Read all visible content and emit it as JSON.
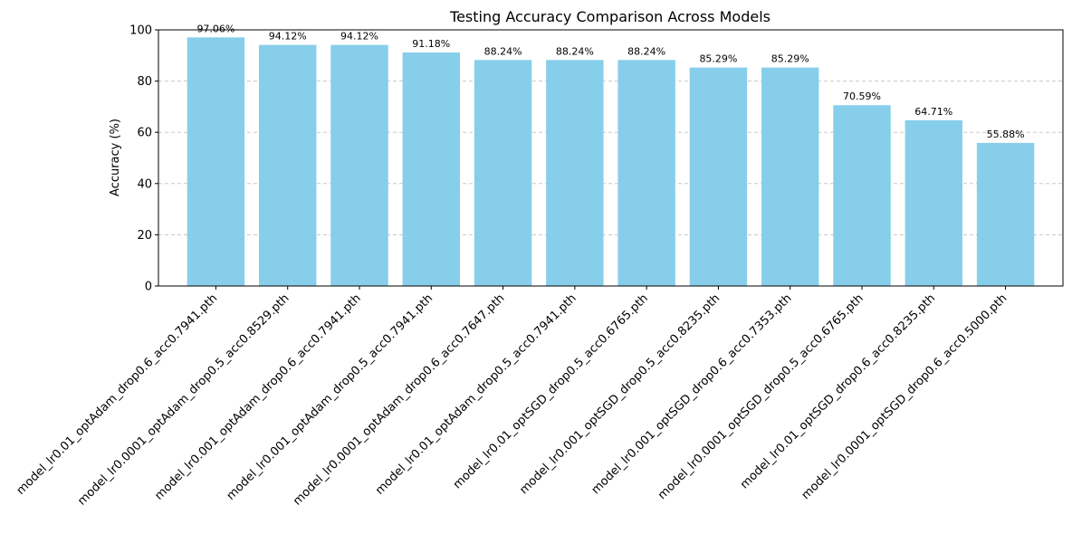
{
  "chart_data": {
    "type": "bar",
    "title": "Testing Accuracy Comparison Across Models",
    "xlabel": "",
    "ylabel": "Accuracy (%)",
    "ylim": [
      0,
      100
    ],
    "yticks": [
      0,
      20,
      40,
      60,
      80,
      100
    ],
    "grid": "y-dashed",
    "bar_color": "#87ceeb",
    "categories": [
      "model_lr0.01_optAdam_drop0.6_acc0.7941.pth",
      "model_lr0.0001_optAdam_drop0.5_acc0.8529.pth",
      "model_lr0.001_optAdam_drop0.6_acc0.7941.pth",
      "model_lr0.001_optAdam_drop0.5_acc0.7941.pth",
      "model_lr0.0001_optAdam_drop0.6_acc0.7647.pth",
      "model_lr0.01_optAdam_drop0.5_acc0.7941.pth",
      "model_lr0.01_optSGD_drop0.5_acc0.6765.pth",
      "model_lr0.001_optSGD_drop0.5_acc0.8235.pth",
      "model_lr0.001_optSGD_drop0.6_acc0.7353.pth",
      "model_lr0.0001_optSGD_drop0.5_acc0.6765.pth",
      "model_lr0.01_optSGD_drop0.6_acc0.8235.pth",
      "model_lr0.0001_optSGD_drop0.6_acc0.5000.pth"
    ],
    "values": [
      97.06,
      94.12,
      94.12,
      91.18,
      88.24,
      88.24,
      88.24,
      85.29,
      85.29,
      70.59,
      64.71,
      55.88
    ],
    "data_labels": [
      "97.06%",
      "94.12%",
      "94.12%",
      "91.18%",
      "88.24%",
      "88.24%",
      "88.24%",
      "85.29%",
      "85.29%",
      "70.59%",
      "64.71%",
      "55.88%"
    ]
  }
}
